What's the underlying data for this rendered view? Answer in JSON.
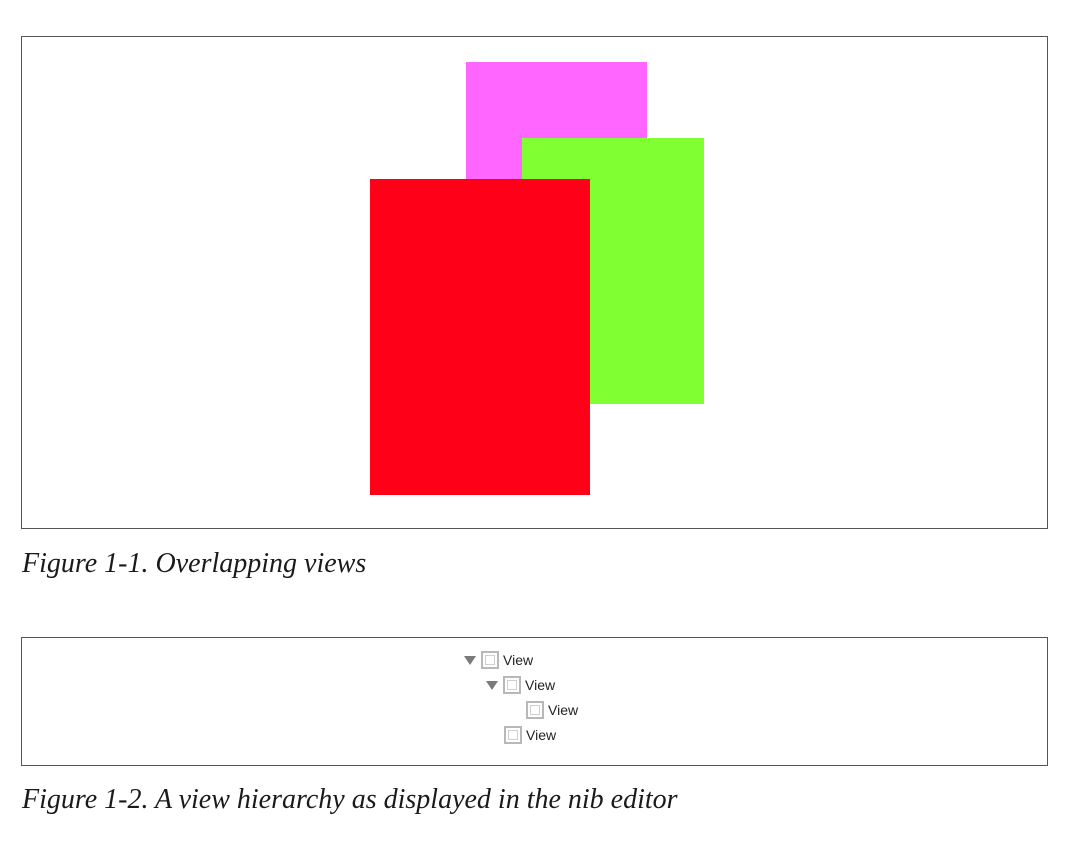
{
  "figure1": {
    "caption": "Figure 1-1. Overlapping views",
    "colors": {
      "magenta": "#FF66FF",
      "green": "#80FF33",
      "red": "#FF0019"
    }
  },
  "figure2": {
    "caption": "Figure 1-2. A view hierarchy as displayed in the nib editor",
    "tree": [
      {
        "label": "View",
        "level": 0,
        "expanded": true
      },
      {
        "label": "View",
        "level": 1,
        "expanded": true
      },
      {
        "label": "View",
        "level": 2,
        "expanded": false
      },
      {
        "label": "View",
        "level": 1,
        "expanded": false
      }
    ]
  }
}
